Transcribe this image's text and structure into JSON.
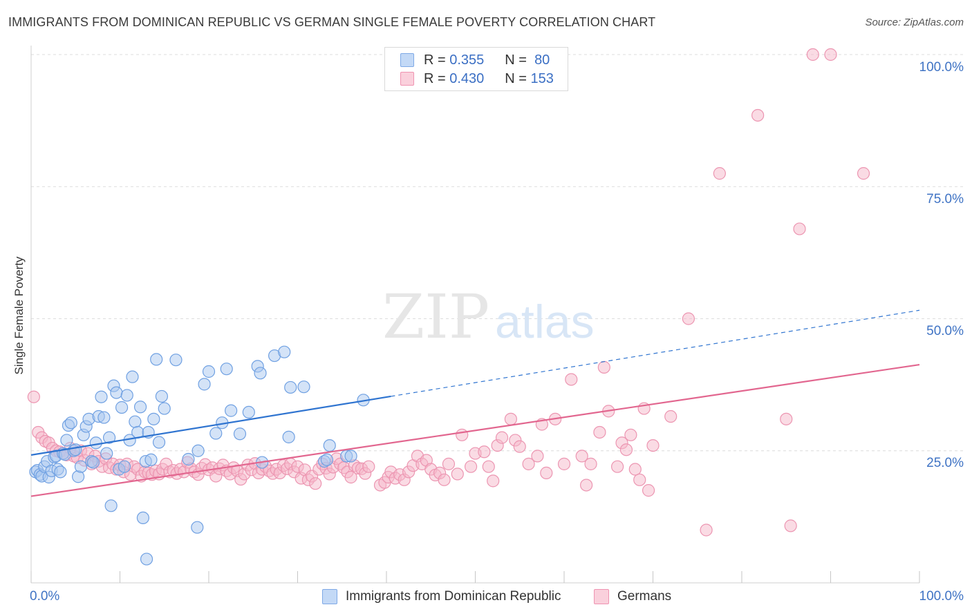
{
  "title": "IMMIGRANTS FROM DOMINICAN REPUBLIC VS GERMAN SINGLE FEMALE POVERTY CORRELATION CHART",
  "source": "Source: ZipAtlas.com",
  "watermark": {
    "zip": "ZIP",
    "atlas": "atlas"
  },
  "legend": {
    "r_label": "R =",
    "n_label": "N =",
    "rows": [
      {
        "r": "0.355",
        "n": "80",
        "color": "#a9c8f0"
      },
      {
        "r": "0.430",
        "n": "153",
        "color": "#f6b8ca"
      }
    ]
  },
  "x_axis": {
    "min_label": "0.0%",
    "max_label": "100.0%"
  },
  "y_axis": {
    "title": "Single Female Poverty",
    "tick_labels": [
      "100.0%",
      "75.0%",
      "50.0%",
      "25.0%"
    ]
  },
  "bottom_legend": [
    "Immigrants from Dominican Republic",
    "Germans"
  ],
  "colors": {
    "blue_fill": "#a9c8f0",
    "blue_line": "#2f74d0",
    "pink_fill": "#f6b8ca",
    "pink_line": "#e2668f",
    "axis_label": "#3f73c4"
  },
  "chart_data": {
    "type": "scatter",
    "title": "IMMIGRANTS FROM DOMINICAN REPUBLIC VS GERMAN SINGLE FEMALE POVERTY CORRELATION CHART",
    "xlabel": "",
    "ylabel": "Single Female Poverty",
    "xlim": [
      0,
      100
    ],
    "ylim": [
      0,
      100
    ],
    "y_ticks": [
      25,
      50,
      75,
      100
    ],
    "grid": "horizontal dashed",
    "legend_position": "top-center",
    "series": [
      {
        "name": "Immigrants from Dominican Republic",
        "r": 0.355,
        "n": 80,
        "trend": {
          "x0": 0,
          "y0": 24.2,
          "x1": 40.5,
          "y1": 35.3,
          "dashed_to": [
            100,
            51.6
          ]
        },
        "points": [
          [
            0.5,
            21
          ],
          [
            0.7,
            21.3
          ],
          [
            1,
            20.5
          ],
          [
            1.2,
            20.2
          ],
          [
            1.5,
            22
          ],
          [
            1.8,
            23
          ],
          [
            2,
            20
          ],
          [
            2.3,
            21.2
          ],
          [
            2.6,
            23.8
          ],
          [
            2.8,
            24
          ],
          [
            3,
            21.5
          ],
          [
            3.3,
            21
          ],
          [
            3.6,
            24.5
          ],
          [
            3.8,
            24.3
          ],
          [
            4,
            27
          ],
          [
            4.2,
            29.8
          ],
          [
            4.5,
            30.3
          ],
          [
            4.8,
            25
          ],
          [
            5,
            25.2
          ],
          [
            5.3,
            20.1
          ],
          [
            5.6,
            22
          ],
          [
            5.9,
            28
          ],
          [
            6.2,
            29.6
          ],
          [
            6.5,
            31
          ],
          [
            6.8,
            23
          ],
          [
            7,
            22.8
          ],
          [
            7.3,
            26.5
          ],
          [
            7.6,
            31.5
          ],
          [
            7.9,
            35.2
          ],
          [
            8.2,
            31.3
          ],
          [
            8.5,
            24.5
          ],
          [
            8.8,
            27.5
          ],
          [
            9,
            14.6
          ],
          [
            9.3,
            37.3
          ],
          [
            9.6,
            36
          ],
          [
            9.9,
            21.5
          ],
          [
            10.2,
            33.2
          ],
          [
            10.5,
            22
          ],
          [
            10.8,
            35.5
          ],
          [
            11.1,
            27
          ],
          [
            11.4,
            39
          ],
          [
            11.7,
            30.5
          ],
          [
            12,
            28.5
          ],
          [
            12.3,
            33.3
          ],
          [
            12.6,
            12.3
          ],
          [
            12.9,
            23
          ],
          [
            13.2,
            28.5
          ],
          [
            13.5,
            23.3
          ],
          [
            13.8,
            31
          ],
          [
            14.1,
            42.3
          ],
          [
            14.4,
            26.6
          ],
          [
            14.7,
            35.3
          ],
          [
            15,
            33
          ],
          [
            16.3,
            42.2
          ],
          [
            17.7,
            23.4
          ],
          [
            18.8,
            25
          ],
          [
            19.5,
            37.6
          ],
          [
            20,
            40
          ],
          [
            20.8,
            28.3
          ],
          [
            21.5,
            30.3
          ],
          [
            22,
            40.5
          ],
          [
            22.5,
            32.6
          ],
          [
            23.5,
            28.2
          ],
          [
            24.5,
            32.3
          ],
          [
            25.5,
            41.0
          ],
          [
            25.8,
            39.7
          ],
          [
            26,
            22.8
          ],
          [
            27.4,
            43.0
          ],
          [
            28.5,
            43.7
          ],
          [
            29,
            27.6
          ],
          [
            29.2,
            37
          ],
          [
            30.7,
            37.1
          ],
          [
            33,
            23
          ],
          [
            33.3,
            23.3
          ],
          [
            33.6,
            26
          ],
          [
            35.5,
            24
          ],
          [
            36,
            24
          ],
          [
            37.4,
            34.6
          ],
          [
            13,
            4.5
          ],
          [
            18.7,
            10.5
          ]
        ]
      },
      {
        "name": "Germans",
        "r": 0.43,
        "n": 153,
        "trend": {
          "x0": 0,
          "y0": 16.4,
          "x1": 100,
          "y1": 41.3
        },
        "points": [
          [
            0.3,
            35.2
          ],
          [
            0.8,
            28.5
          ],
          [
            1.2,
            27.5
          ],
          [
            1.6,
            26.8
          ],
          [
            2,
            26.5
          ],
          [
            2.4,
            25.5
          ],
          [
            2.8,
            25
          ],
          [
            3.2,
            24.8
          ],
          [
            3.6,
            24.5
          ],
          [
            4,
            24.2
          ],
          [
            4.4,
            25.5
          ],
          [
            4.8,
            24
          ],
          [
            5.2,
            23.7
          ],
          [
            5.6,
            25
          ],
          [
            6,
            23.2
          ],
          [
            6.4,
            24.5
          ],
          [
            6.8,
            22.5
          ],
          [
            7.2,
            24
          ],
          [
            7.6,
            23
          ],
          [
            8,
            22
          ],
          [
            8.4,
            23.5
          ],
          [
            8.8,
            21.8
          ],
          [
            9.2,
            22.5
          ],
          [
            9.6,
            21.5
          ],
          [
            10,
            22.3
          ],
          [
            10.4,
            21
          ],
          [
            10.8,
            22.5
          ],
          [
            11.2,
            20.5
          ],
          [
            11.6,
            22
          ],
          [
            12,
            21.5
          ],
          [
            12.4,
            20.2
          ],
          [
            12.8,
            21
          ],
          [
            13.2,
            20.8
          ],
          [
            13.6,
            20.5
          ],
          [
            14,
            21.2
          ],
          [
            14.4,
            20.6
          ],
          [
            14.8,
            21.5
          ],
          [
            15.2,
            22.5
          ],
          [
            15.6,
            21
          ],
          [
            16,
            21.3
          ],
          [
            16.4,
            20.7
          ],
          [
            16.8,
            21.5
          ],
          [
            17.2,
            21
          ],
          [
            17.6,
            22.8
          ],
          [
            18,
            21.6
          ],
          [
            18.4,
            21
          ],
          [
            18.8,
            20.5
          ],
          [
            19.2,
            21.7
          ],
          [
            19.6,
            22.4
          ],
          [
            20,
            21.4
          ],
          [
            20.4,
            21.8
          ],
          [
            20.8,
            20.2
          ],
          [
            21.2,
            21.6
          ],
          [
            21.6,
            22.3
          ],
          [
            22,
            21.2
          ],
          [
            22.4,
            20.6
          ],
          [
            22.8,
            21.8
          ],
          [
            23.2,
            21.2
          ],
          [
            23.6,
            19.6
          ],
          [
            24,
            20.6
          ],
          [
            24.4,
            22.3
          ],
          [
            24.8,
            21.4
          ],
          [
            25.2,
            22.6
          ],
          [
            25.6,
            20.8
          ],
          [
            26,
            21.5
          ],
          [
            26.4,
            22
          ],
          [
            26.8,
            21.2
          ],
          [
            27.2,
            20.7
          ],
          [
            27.6,
            21.5
          ],
          [
            28,
            20.8
          ],
          [
            28.4,
            22.2
          ],
          [
            28.8,
            21.6
          ],
          [
            29.2,
            22.5
          ],
          [
            29.6,
            21
          ],
          [
            30,
            22
          ],
          [
            30.4,
            19.8
          ],
          [
            30.8,
            21.4
          ],
          [
            31.2,
            19.5
          ],
          [
            31.6,
            20.2
          ],
          [
            32,
            18.8
          ],
          [
            32.4,
            21.5
          ],
          [
            32.8,
            22.5
          ],
          [
            33.2,
            21.7
          ],
          [
            33.6,
            20.6
          ],
          [
            34,
            21.9
          ],
          [
            34.4,
            23.5
          ],
          [
            34.8,
            22.5
          ],
          [
            35.2,
            21.8
          ],
          [
            35.6,
            21
          ],
          [
            36,
            20
          ],
          [
            36.4,
            22.2
          ],
          [
            36.8,
            21.7
          ],
          [
            37.2,
            21.6
          ],
          [
            37.6,
            20.7
          ],
          [
            38,
            22
          ],
          [
            39.3,
            18.5
          ],
          [
            39.8,
            19
          ],
          [
            40.2,
            20
          ],
          [
            40.5,
            21
          ],
          [
            41,
            19.8
          ],
          [
            41.5,
            20.5
          ],
          [
            42,
            19.5
          ],
          [
            42.5,
            21
          ],
          [
            43,
            22.2
          ],
          [
            43.5,
            24
          ],
          [
            44,
            22.5
          ],
          [
            44.5,
            23.2
          ],
          [
            45,
            21.5
          ],
          [
            45.5,
            20.4
          ],
          [
            46,
            20.8
          ],
          [
            46.5,
            19.5
          ],
          [
            47,
            22.5
          ],
          [
            48,
            20.6
          ],
          [
            48.5,
            28
          ],
          [
            49.5,
            22
          ],
          [
            50,
            24.5
          ],
          [
            51,
            24.8
          ],
          [
            51.5,
            22
          ],
          [
            52,
            19.3
          ],
          [
            52.5,
            26
          ],
          [
            53,
            27.5
          ],
          [
            54,
            31
          ],
          [
            54.5,
            27
          ],
          [
            55,
            25.8
          ],
          [
            56,
            22.5
          ],
          [
            57,
            24
          ],
          [
            57.5,
            30
          ],
          [
            58,
            20.8
          ],
          [
            59,
            31
          ],
          [
            60,
            22.5
          ],
          [
            60.8,
            38.5
          ],
          [
            62,
            24
          ],
          [
            62.5,
            18.5
          ],
          [
            63,
            22.5
          ],
          [
            64,
            28.5
          ],
          [
            64.5,
            40.8
          ],
          [
            65,
            32.5
          ],
          [
            66,
            22
          ],
          [
            66.5,
            26.5
          ],
          [
            67,
            25.2
          ],
          [
            67.5,
            28
          ],
          [
            68,
            21.5
          ],
          [
            68.5,
            19.5
          ],
          [
            69,
            33
          ],
          [
            69.5,
            17.5
          ],
          [
            70,
            26
          ],
          [
            72,
            31.5
          ],
          [
            74,
            50
          ],
          [
            76,
            10
          ],
          [
            77.5,
            77.5
          ],
          [
            81.8,
            88.5
          ],
          [
            85,
            31
          ],
          [
            85.5,
            10.8
          ],
          [
            86.5,
            67
          ],
          [
            88,
            100
          ],
          [
            90,
            100
          ],
          [
            93.7,
            77.5
          ]
        ]
      }
    ]
  }
}
